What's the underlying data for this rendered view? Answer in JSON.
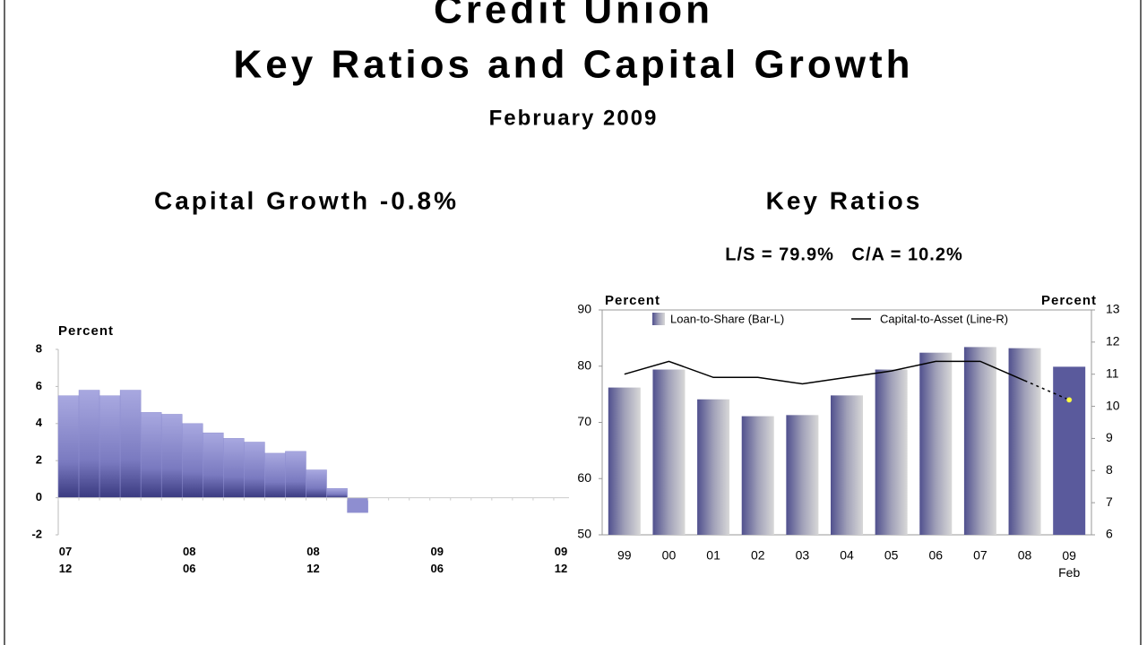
{
  "header": {
    "title_lines": [
      "Credit Union",
      "Key Ratios and Capital Growth"
    ],
    "subtitle": "February 2009"
  },
  "chart_data": [
    {
      "type": "bar",
      "title": "Capital Growth -0.8%",
      "y_label": "Percent",
      "categories": [
        "07\n12",
        null,
        null,
        null,
        null,
        null,
        "08\n06",
        null,
        null,
        null,
        null,
        null,
        "08\n12",
        null,
        null,
        null,
        null,
        null,
        "09\n06",
        null,
        null,
        null,
        null,
        null,
        "09\n12"
      ],
      "values": [
        5.5,
        5.8,
        5.5,
        5.8,
        4.6,
        4.5,
        4.0,
        3.5,
        3.2,
        3.0,
        2.4,
        2.5,
        1.5,
        0.5,
        -0.8,
        null,
        null,
        null,
        null,
        null,
        null,
        null,
        null,
        null,
        null
      ],
      "color": "#8e8ed0",
      "ylim": [
        -2,
        8
      ],
      "yticks": [
        -2,
        0,
        2,
        4,
        6,
        8
      ]
    },
    {
      "type": "bar_line",
      "title": "Key Ratios",
      "subtitle": "L/S = 79.9%   C/A = 10.2%",
      "y_label": "Percent",
      "y2_label": "Percent",
      "categories": [
        "99",
        "00",
        "01",
        "02",
        "03",
        "04",
        "05",
        "06",
        "07",
        "08",
        "09\nFeb"
      ],
      "series": [
        {
          "name": "Loan-to-Share (Bar-L)",
          "colors": [
            "#b8b8c8",
            "#b8b8c8",
            "#b8b8c8",
            "#b8b8c8",
            "#b8b8c8",
            "#b8b8c8",
            "#b8b8c8",
            "#b8b8c8",
            "#b8b8c8",
            "#b8b8c8",
            "#5a5a9c"
          ],
          "values": [
            76.2,
            79.4,
            74.1,
            71.1,
            71.3,
            74.8,
            79.4,
            82.4,
            83.4,
            83.2,
            79.9
          ]
        },
        {
          "name": "Capital-to-Asset (Line-R)",
          "color": "#000000",
          "axis": "y2",
          "values": [
            11.0,
            11.4,
            10.9,
            10.9,
            10.7,
            10.9,
            11.1,
            11.4,
            11.4,
            10.8,
            10.2
          ]
        }
      ],
      "ylim": [
        50,
        90
      ],
      "yticks": [
        50,
        60,
        70,
        80,
        90
      ],
      "y2lim": [
        6,
        13
      ],
      "y2ticks": [
        6,
        7,
        8,
        9,
        10,
        11,
        12,
        13
      ]
    }
  ]
}
